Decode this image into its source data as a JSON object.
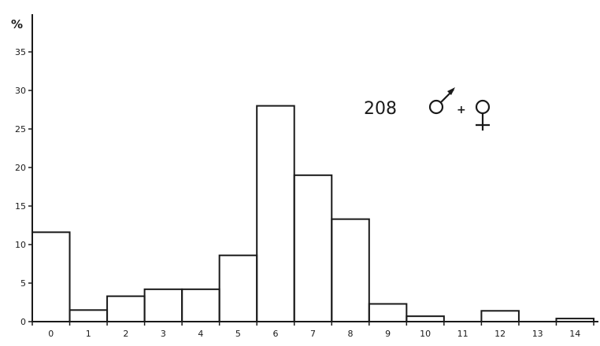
{
  "chart_data": {
    "type": "bar",
    "title": "",
    "xlabel": "",
    "ylabel": "%",
    "categories": [
      "0",
      "1",
      "2",
      "3",
      "4",
      "5",
      "6",
      "7",
      "8",
      "9",
      "10",
      "11",
      "12",
      "13",
      "14"
    ],
    "values": [
      11.6,
      1.5,
      3.3,
      4.2,
      4.2,
      8.6,
      28.0,
      19.0,
      13.3,
      2.3,
      0.7,
      0.0,
      1.4,
      0.0,
      0.4
    ],
    "xlim": [
      -0.5,
      14.5
    ],
    "ylim": [
      0,
      35
    ],
    "yticks": [
      "0",
      "5",
      "10",
      "15",
      "20",
      "25",
      "30",
      "35"
    ],
    "grid": false,
    "legend": "none",
    "annotation": {
      "count": "208",
      "sexes": "male + female",
      "male_symbol": "♂",
      "plus": "+",
      "female_symbol": "♀"
    },
    "colors": {
      "line": "#1a1a1a",
      "background": "#ffffff"
    }
  }
}
